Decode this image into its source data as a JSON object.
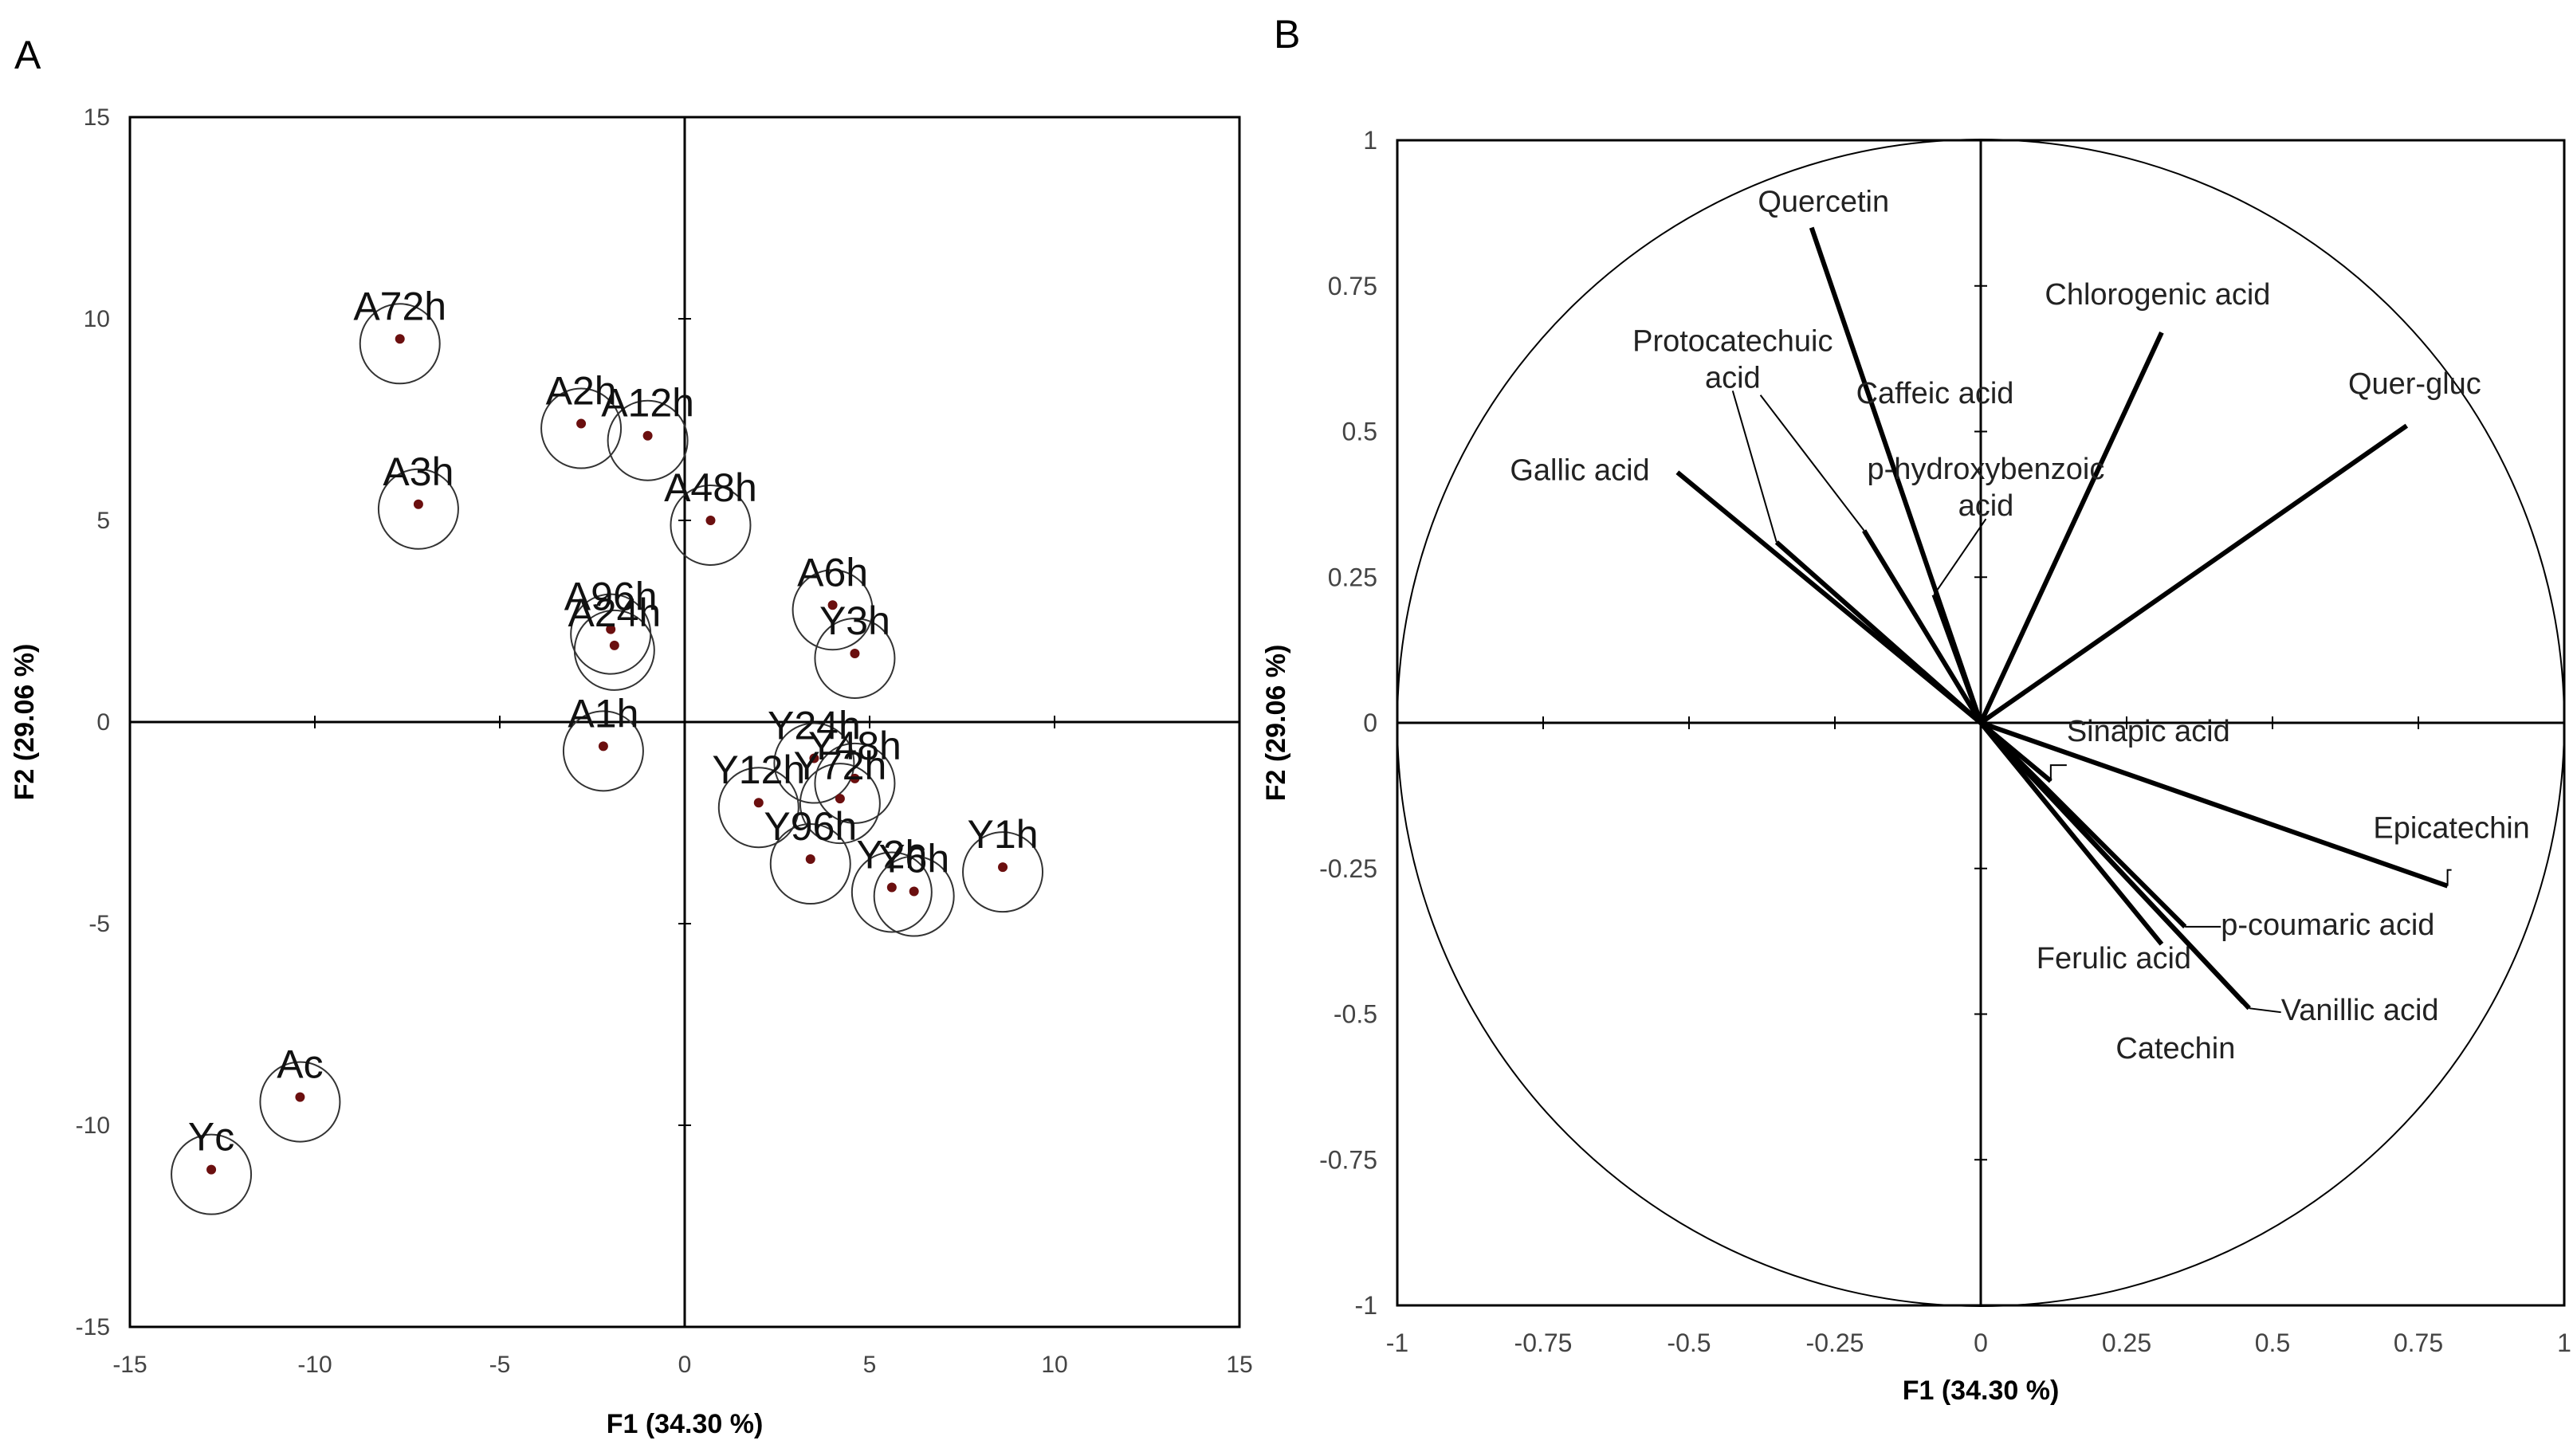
{
  "chart_data": [
    {
      "panel_label": "A",
      "type": "scatter",
      "title": "",
      "xlabel": "F1 (34.30 %)",
      "ylabel": "F2 (29.06 %)",
      "xlim": [
        -15,
        15
      ],
      "ylim": [
        -15,
        15
      ],
      "xticks": [
        -15,
        -10,
        -5,
        0,
        5,
        10,
        15
      ],
      "yticks": [
        -15,
        -10,
        -5,
        0,
        5,
        10,
        15
      ],
      "grid": false,
      "colors": {
        "point": "#6b0f0f",
        "line": "#000000",
        "circle": "#333333"
      },
      "points": [
        {
          "label": "A72h",
          "x": -7.7,
          "y": 9.5
        },
        {
          "label": "A2h",
          "x": -2.8,
          "y": 7.4
        },
        {
          "label": "A12h",
          "x": -1.0,
          "y": 7.1
        },
        {
          "label": "A3h",
          "x": -7.2,
          "y": 5.4
        },
        {
          "label": "A48h",
          "x": 0.7,
          "y": 5.0
        },
        {
          "label": "A6h",
          "x": 4.0,
          "y": 2.9
        },
        {
          "label": "Y3h",
          "x": 4.6,
          "y": 1.7
        },
        {
          "label": "A96h",
          "x": -2.0,
          "y": 2.3
        },
        {
          "label": "A24h",
          "x": -1.9,
          "y": 1.9
        },
        {
          "label": "A1h",
          "x": -2.2,
          "y": -0.6
        },
        {
          "label": "Y24h",
          "x": 3.5,
          "y": -0.9
        },
        {
          "label": "Y48h",
          "x": 4.6,
          "y": -1.4
        },
        {
          "label": "Y72h",
          "x": 4.2,
          "y": -1.9
        },
        {
          "label": "Y12h",
          "x": 2.0,
          "y": -2.0
        },
        {
          "label": "Y96h",
          "x": 3.4,
          "y": -3.4
        },
        {
          "label": "Y2h",
          "x": 5.6,
          "y": -4.1
        },
        {
          "label": "Y6h",
          "x": 6.2,
          "y": -4.2
        },
        {
          "label": "Y1h",
          "x": 8.6,
          "y": -3.6
        },
        {
          "label": "Ac",
          "x": -10.4,
          "y": -9.3
        },
        {
          "label": "Yc",
          "x": -12.8,
          "y": -11.1
        }
      ]
    },
    {
      "panel_label": "B",
      "type": "biplot-loadings",
      "title": "",
      "xlabel": "F1 (34.30 %)",
      "ylabel": "F2 (29.06 %)",
      "xlim": [
        -1,
        1
      ],
      "ylim": [
        -1,
        1
      ],
      "xticks": [
        -1,
        -0.75,
        -0.5,
        -0.25,
        0,
        0.25,
        0.5,
        0.75,
        1
      ],
      "yticks": [
        -1,
        -0.75,
        -0.5,
        -0.25,
        0,
        0.25,
        0.5,
        0.75,
        1
      ],
      "unit_circle": true,
      "grid": false,
      "vectors": [
        {
          "label": "Quercetin",
          "x": -0.29,
          "y": 0.85
        },
        {
          "label": "Chlorogenic acid",
          "x": 0.31,
          "y": 0.67
        },
        {
          "label": "Quer-gluc",
          "x": 0.73,
          "y": 0.51
        },
        {
          "label": "Protocatechuic acid",
          "x": -0.35,
          "y": 0.31
        },
        {
          "label": "Caffeic acid",
          "x": -0.2,
          "y": 0.33
        },
        {
          "label": "p-hydroxybenzoic acid",
          "x": -0.08,
          "y": 0.22
        },
        {
          "label": "Gallic acid",
          "x": -0.52,
          "y": 0.43
        },
        {
          "label": "Sinapic acid",
          "x": 0.12,
          "y": -0.1
        },
        {
          "label": "Epicatechin",
          "x": 0.8,
          "y": -0.28
        },
        {
          "label": "p-coumaric acid",
          "x": 0.35,
          "y": -0.35
        },
        {
          "label": "Ferulic acid",
          "x": 0.31,
          "y": -0.38
        },
        {
          "label": "Vanillic acid",
          "x": 0.46,
          "y": -0.49
        },
        {
          "label": "Catechin",
          "x": 0.45,
          "y": -0.48
        }
      ]
    }
  ]
}
